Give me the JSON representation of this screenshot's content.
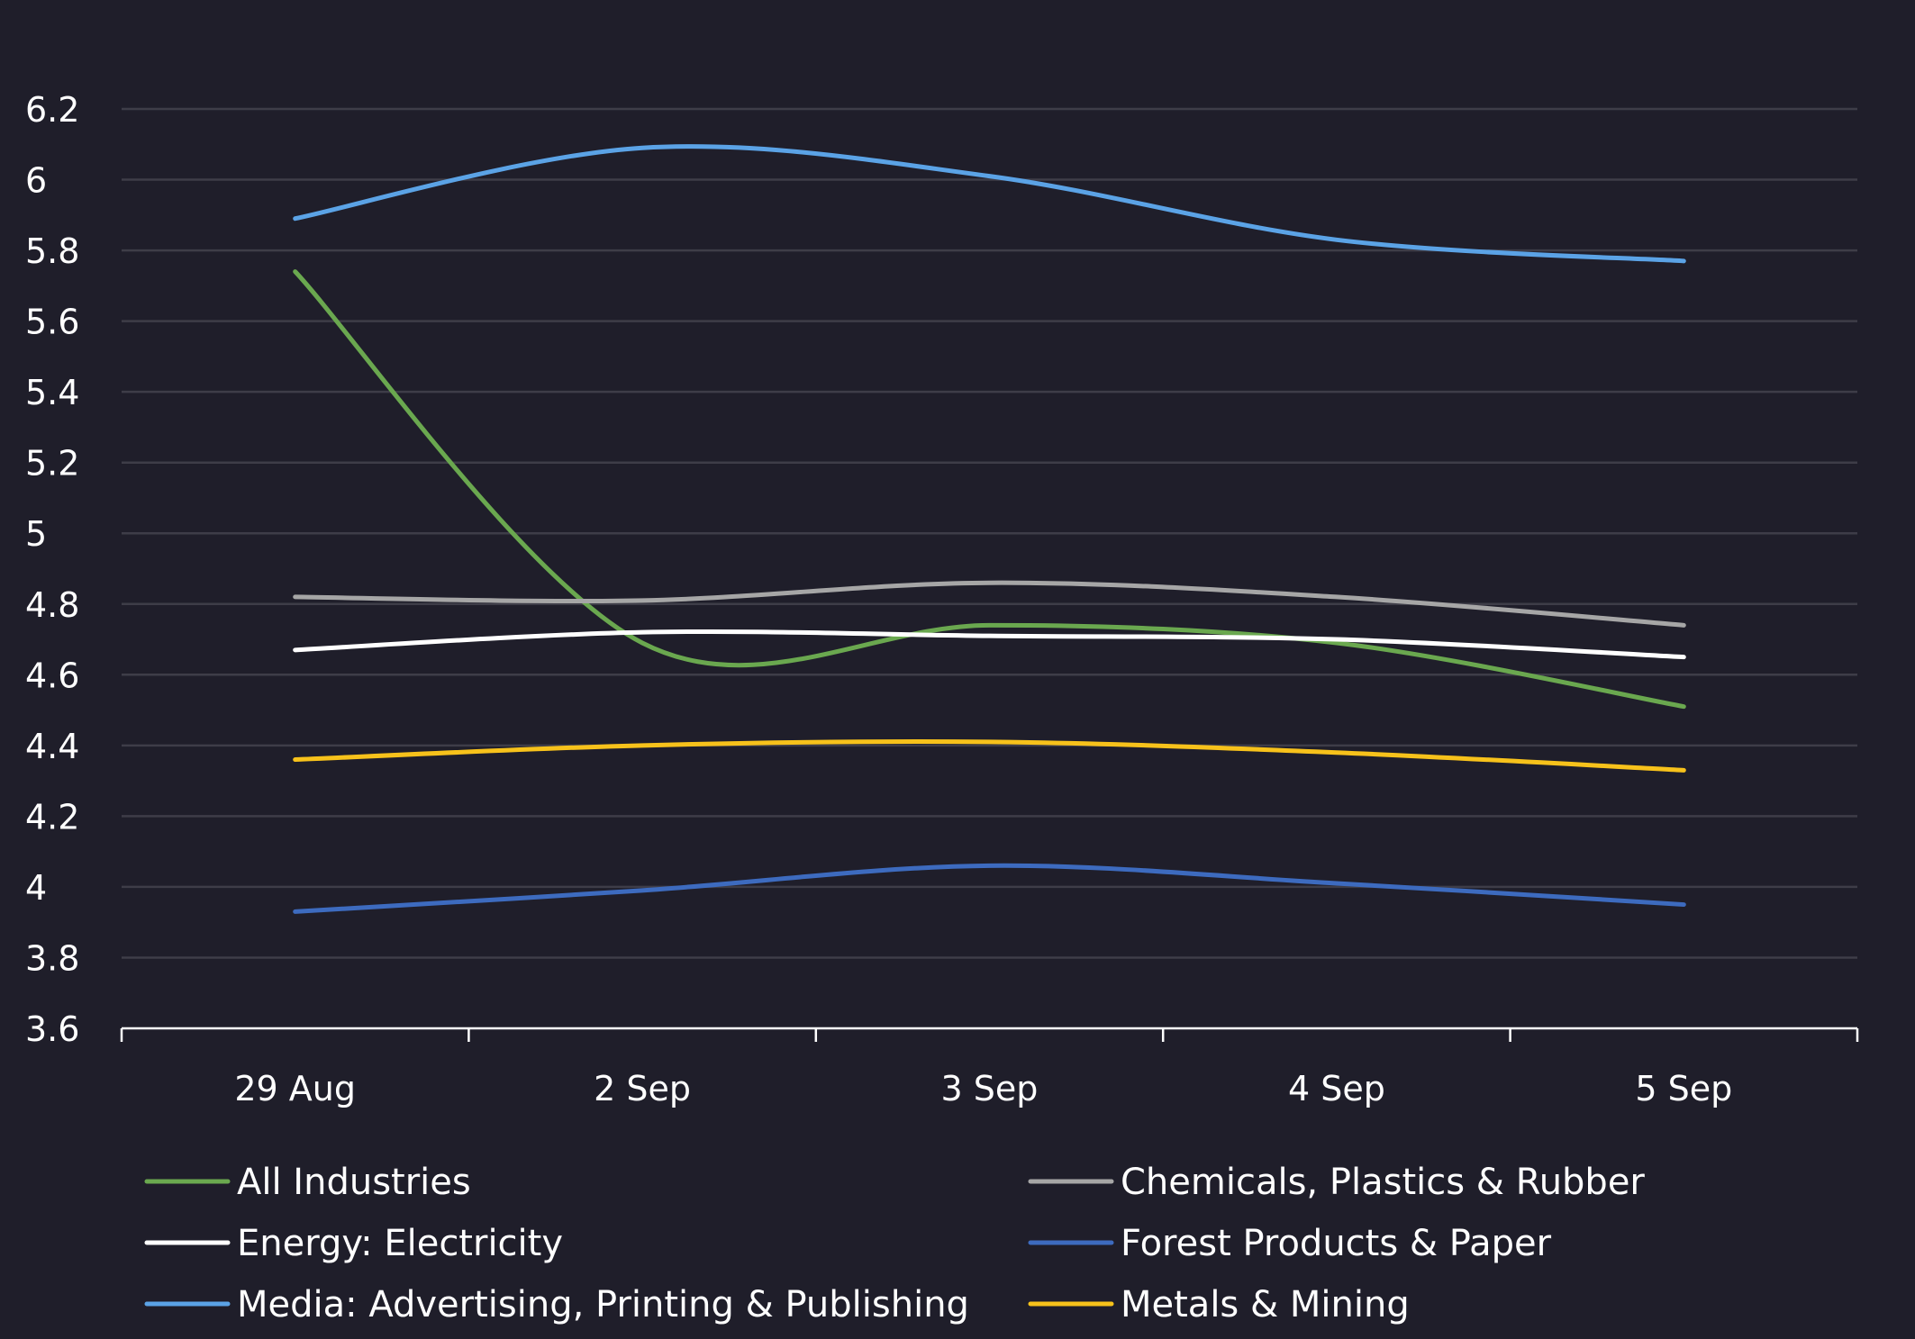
{
  "chart_data": {
    "type": "line",
    "title": "",
    "xlabel": "",
    "ylabel": "",
    "categories": [
      "29 Aug",
      "2 Sep",
      "3 Sep",
      "4 Sep",
      "5 Sep"
    ],
    "ylim": [
      3.6,
      6.2
    ],
    "yticks": [
      3.6,
      3.8,
      4,
      4.2,
      4.4,
      4.6,
      4.8,
      5,
      5.2,
      5.4,
      5.6,
      5.8,
      6,
      6.2
    ],
    "grid": true,
    "legend_position": "bottom",
    "smooth": true,
    "series": [
      {
        "name": "All Industries",
        "color": "#6aa84f",
        "values": [
          5.74,
          4.69,
          4.74,
          4.69,
          4.51
        ]
      },
      {
        "name": "Chemicals, Plastics & Rubber",
        "color": "#a6a6a6",
        "values": [
          4.82,
          4.81,
          4.86,
          4.82,
          4.74
        ]
      },
      {
        "name": "Energy: Electricity",
        "color": "#ffffff",
        "values": [
          4.67,
          4.72,
          4.71,
          4.7,
          4.65
        ]
      },
      {
        "name": "Forest Products & Paper",
        "color": "#3d6bbf",
        "values": [
          3.93,
          3.99,
          4.06,
          4.01,
          3.95
        ]
      },
      {
        "name": "Media: Advertising, Printing & Publishing",
        "color": "#5ba3e6",
        "values": [
          5.89,
          6.09,
          6.01,
          5.83,
          5.77
        ]
      },
      {
        "name": "Metals & Mining",
        "color": "#f7c21b",
        "values": [
          4.36,
          4.4,
          4.41,
          4.38,
          4.33
        ]
      }
    ]
  }
}
